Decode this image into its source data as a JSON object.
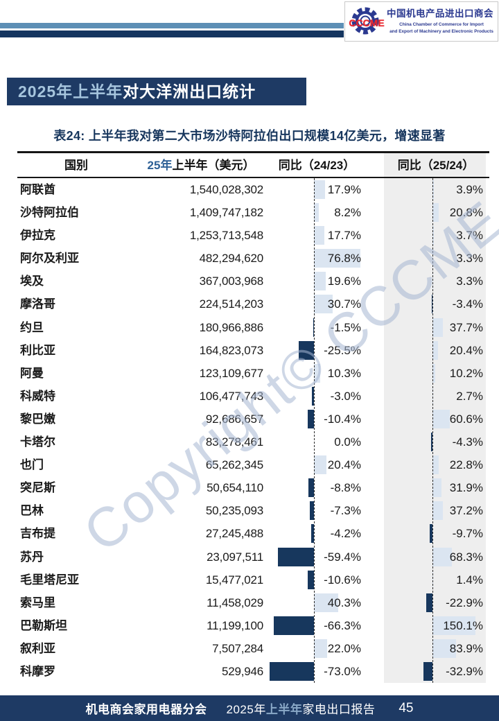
{
  "header": {
    "logo": {
      "acronym": "CCCME",
      "cn": "中国机电产品进出口商会",
      "en1": "China Chamber of Commerce for Import",
      "en2": "and Export of Machinery and Electronic Products"
    }
  },
  "title_banner": {
    "highlight": "2025年上半年",
    "rest": "对大洋洲出口统计"
  },
  "table_caption": "表24: 上半年我对第二大市场沙特阿拉伯出口规模14亿美元，增速显著",
  "table": {
    "header": {
      "country": "国别",
      "value_highlight": "25年",
      "value_rest": "上半年（美元）",
      "yoy1": "同比（24/23）",
      "yoy2": "同比（25/24）"
    },
    "rows": [
      {
        "country": "阿联酋",
        "value": "1,540,028,302",
        "yoy1": 17.9,
        "yoy1_label": "17.9%",
        "yoy2": 3.9,
        "yoy2_label": "3.9%"
      },
      {
        "country": "沙特阿拉伯",
        "value": "1,409,747,182",
        "yoy1": 8.2,
        "yoy1_label": "8.2%",
        "yoy2": 20.8,
        "yoy2_label": "20.8%"
      },
      {
        "country": "伊拉克",
        "value": "1,253,713,548",
        "yoy1": 17.7,
        "yoy1_label": "17.7%",
        "yoy2": 3.7,
        "yoy2_label": "3.7%"
      },
      {
        "country": "阿尔及利亚",
        "value": "482,294,620",
        "yoy1": 76.8,
        "yoy1_label": "76.8%",
        "yoy2": 3.3,
        "yoy2_label": "3.3%"
      },
      {
        "country": "埃及",
        "value": "367,003,968",
        "yoy1": 19.6,
        "yoy1_label": "19.6%",
        "yoy2": 3.3,
        "yoy2_label": "3.3%"
      },
      {
        "country": "摩洛哥",
        "value": "224,514,203",
        "yoy1": 30.7,
        "yoy1_label": "30.7%",
        "yoy2": -3.4,
        "yoy2_label": "-3.4%"
      },
      {
        "country": "约旦",
        "value": "180,966,886",
        "yoy1": -1.5,
        "yoy1_label": "-1.5%",
        "yoy2": 37.7,
        "yoy2_label": "37.7%"
      },
      {
        "country": "利比亚",
        "value": "164,823,073",
        "yoy1": -25.5,
        "yoy1_label": "-25.5%",
        "yoy2": 20.4,
        "yoy2_label": "20.4%"
      },
      {
        "country": "阿曼",
        "value": "123,109,677",
        "yoy1": 10.3,
        "yoy1_label": "10.3%",
        "yoy2": 10.2,
        "yoy2_label": "10.2%"
      },
      {
        "country": "科威特",
        "value": "106,477,743",
        "yoy1": -3.0,
        "yoy1_label": "-3.0%",
        "yoy2": 2.7,
        "yoy2_label": "2.7%"
      },
      {
        "country": "黎巴嫩",
        "value": "92,686,657",
        "yoy1": -10.4,
        "yoy1_label": "-10.4%",
        "yoy2": 60.6,
        "yoy2_label": "60.6%"
      },
      {
        "country": "卡塔尔",
        "value": "83,278,461",
        "yoy1": 0.0,
        "yoy1_label": "0.0%",
        "yoy2": -4.3,
        "yoy2_label": "-4.3%"
      },
      {
        "country": "也门",
        "value": "65,262,345",
        "yoy1": 20.4,
        "yoy1_label": "20.4%",
        "yoy2": 22.8,
        "yoy2_label": "22.8%"
      },
      {
        "country": "突尼斯",
        "value": "50,654,110",
        "yoy1": -8.8,
        "yoy1_label": "-8.8%",
        "yoy2": 31.9,
        "yoy2_label": "31.9%"
      },
      {
        "country": "巴林",
        "value": "50,235,093",
        "yoy1": -7.3,
        "yoy1_label": "-7.3%",
        "yoy2": 37.2,
        "yoy2_label": "37.2%"
      },
      {
        "country": "吉布提",
        "value": "27,245,488",
        "yoy1": -4.2,
        "yoy1_label": "-4.2%",
        "yoy2": -9.7,
        "yoy2_label": "-9.7%"
      },
      {
        "country": "苏丹",
        "value": "23,097,511",
        "yoy1": -59.4,
        "yoy1_label": "-59.4%",
        "yoy2": 68.3,
        "yoy2_label": "68.3%"
      },
      {
        "country": "毛里塔尼亚",
        "value": "15,477,021",
        "yoy1": -10.6,
        "yoy1_label": "-10.6%",
        "yoy2": 1.4,
        "yoy2_label": "1.4%"
      },
      {
        "country": "索马里",
        "value": "11,458,029",
        "yoy1": 40.3,
        "yoy1_label": "40.3%",
        "yoy2": -22.9,
        "yoy2_label": "-22.9%"
      },
      {
        "country": "巴勒斯坦",
        "value": "11,199,100",
        "yoy1": -66.3,
        "yoy1_label": "-66.3%",
        "yoy2": 150.1,
        "yoy2_label": "150.1%"
      },
      {
        "country": "叙利亚",
        "value": "7,507,284",
        "yoy1": 22.0,
        "yoy1_label": "22.0%",
        "yoy2": 83.9,
        "yoy2_label": "83.9%"
      },
      {
        "country": "科摩罗",
        "value": "529,946",
        "yoy1": -73.0,
        "yoy1_label": "-73.0%",
        "yoy2": -32.9,
        "yoy2_label": "-32.9%"
      }
    ]
  },
  "chart_data": {
    "type": "table",
    "columns": [
      "国别",
      "25年上半年（美元）",
      "同比（24/23）",
      "同比（25/24）"
    ],
    "bar_columns": [
      "同比（24/23）",
      "同比（25/24）"
    ],
    "rows": [
      [
        "阿联酋",
        "1,540,028,302",
        17.9,
        3.9
      ],
      [
        "沙特阿拉伯",
        "1,409,747,182",
        8.2,
        20.8
      ],
      [
        "伊拉克",
        "1,253,713,548",
        17.7,
        3.7
      ],
      [
        "阿尔及利亚",
        "482,294,620",
        76.8,
        3.3
      ],
      [
        "埃及",
        "367,003,968",
        19.6,
        3.3
      ],
      [
        "摩洛哥",
        "224,514,203",
        30.7,
        -3.4
      ],
      [
        "约旦",
        "180,966,886",
        -1.5,
        37.7
      ],
      [
        "利比亚",
        "164,823,073",
        -25.5,
        20.4
      ],
      [
        "阿曼",
        "123,109,677",
        10.3,
        10.2
      ],
      [
        "科威特",
        "106,477,743",
        -3.0,
        2.7
      ],
      [
        "黎巴嫩",
        "92,686,657",
        -10.4,
        60.6
      ],
      [
        "卡塔尔",
        "83,278,461",
        0.0,
        -4.3
      ],
      [
        "也门",
        "65,262,345",
        20.4,
        22.8
      ],
      [
        "突尼斯",
        "50,654,110",
        -8.8,
        31.9
      ],
      [
        "巴林",
        "50,235,093",
        -7.3,
        37.2
      ],
      [
        "吉布提",
        "27,245,488",
        -4.2,
        -9.7
      ],
      [
        "苏丹",
        "23,097,511",
        -59.4,
        68.3
      ],
      [
        "毛里塔尼亚",
        "15,477,021",
        -10.6,
        1.4
      ],
      [
        "索马里",
        "11,458,029",
        40.3,
        -22.9
      ],
      [
        "巴勒斯坦",
        "11,199,100",
        -66.3,
        150.1
      ],
      [
        "叙利亚",
        "7,507,284",
        22.0,
        83.9
      ],
      [
        "科摩罗",
        "529,946",
        -73.0,
        -32.9
      ]
    ],
    "title": "表24: 上半年我对第二大市场沙特阿拉伯出口规模14亿美元，增速显著",
    "positive_bar_color": "#dbe5f1",
    "negative_bar_color": "#17375d"
  },
  "watermark": "Copyright© CCCME",
  "footer": {
    "left": "机电商会家用电器分会",
    "report_prefix": "2025年",
    "report_highlight": "上半年",
    "report_suffix": "家电出口报告",
    "page": "45"
  },
  "colors": {
    "navy": "#1e3a64",
    "light_stripe": "#5d8fb5",
    "gray_band": "#eeeeee",
    "header_blue": "#2d6096",
    "logo_blue": "#2b3990",
    "logo_red": "#e8262d"
  }
}
